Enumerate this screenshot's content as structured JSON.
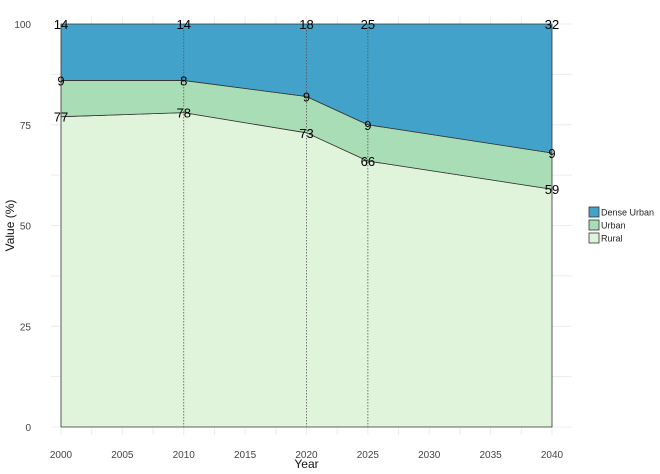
{
  "chart_data": {
    "type": "area",
    "stacked": true,
    "xlabel": "Year",
    "ylabel": "Value (%)",
    "xlim": [
      2000,
      2040
    ],
    "ylim": [
      0,
      100
    ],
    "xticks": [
      2000,
      2005,
      2010,
      2015,
      2020,
      2025,
      2030,
      2035,
      2040
    ],
    "yticks": [
      0,
      25,
      50,
      75,
      100
    ],
    "x": [
      2000,
      2010,
      2020,
      2025,
      2040
    ],
    "series": [
      {
        "name": "Rural",
        "values": [
          77,
          78,
          73,
          66,
          59
        ],
        "color": "#e0f3db"
      },
      {
        "name": "Urban",
        "values": [
          9,
          8,
          9,
          9,
          9
        ],
        "color": "#a8ddb5"
      },
      {
        "name": "Dense Urban",
        "values": [
          14,
          14,
          18,
          25,
          32
        ],
        "color": "#43a2ca"
      }
    ],
    "legend_order": [
      "Dense Urban",
      "Urban",
      "Rural"
    ],
    "legend_position": "right",
    "reference_lines_x": [
      2010,
      2020,
      2025
    ],
    "grid": true
  }
}
